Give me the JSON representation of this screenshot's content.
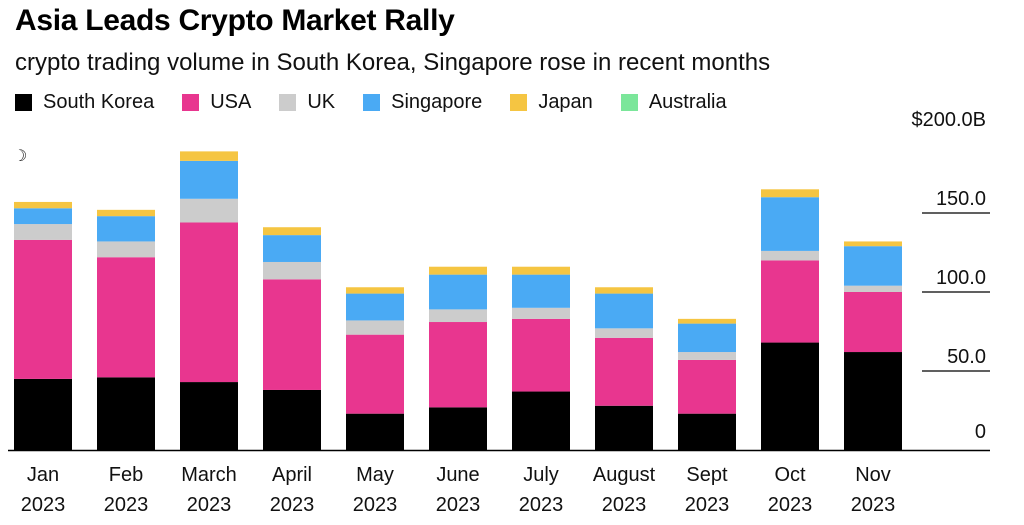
{
  "title": "Asia Leads Crypto Market Rally",
  "subtitle": "crypto trading volume in South Korea, Singapore rose in recent months",
  "marker": "☽",
  "chart_data": {
    "type": "bar",
    "stacked": true,
    "categories": [
      "Jan\n2023",
      "Feb\n2023",
      "March\n2023",
      "April\n2023",
      "May\n2023",
      "June\n2023",
      "July\n2023",
      "August\n2023",
      "Sept\n2023",
      "Oct\n2023",
      "Nov\n2023"
    ],
    "series": [
      {
        "name": "South Korea",
        "color": "#000000",
        "values": [
          45,
          46,
          43,
          38,
          23,
          27,
          37,
          28,
          23,
          68,
          62
        ]
      },
      {
        "name": "USA",
        "color": "#e8368f",
        "values": [
          88,
          76,
          101,
          70,
          50,
          54,
          46,
          43,
          34,
          52,
          38
        ]
      },
      {
        "name": "UK",
        "color": "#cccccc",
        "values": [
          10,
          10,
          15,
          11,
          9,
          8,
          7,
          6,
          5,
          6,
          4
        ]
      },
      {
        "name": "Singapore",
        "color": "#4aaaf4",
        "values": [
          10,
          16,
          24,
          17,
          17,
          22,
          21,
          22,
          18,
          34,
          25
        ]
      },
      {
        "name": "Japan",
        "color": "#f5c542",
        "values": [
          4,
          4,
          6,
          5,
          4,
          5,
          5,
          4,
          3,
          5,
          3
        ]
      },
      {
        "name": "Australia",
        "color": "#7be69a",
        "values": [
          0,
          0,
          0,
          0,
          0,
          0,
          0,
          0,
          0,
          0,
          0
        ]
      }
    ],
    "y_ticks": [
      {
        "value": 200,
        "label": "$200.0B"
      },
      {
        "value": 150,
        "label": "150.0"
      },
      {
        "value": 100,
        "label": "100.0"
      },
      {
        "value": 50,
        "label": "50.0"
      },
      {
        "value": 0,
        "label": "0"
      }
    ],
    "ylim": [
      0,
      200
    ],
    "xlabel": "",
    "ylabel": "",
    "legend_position": "top-left"
  }
}
